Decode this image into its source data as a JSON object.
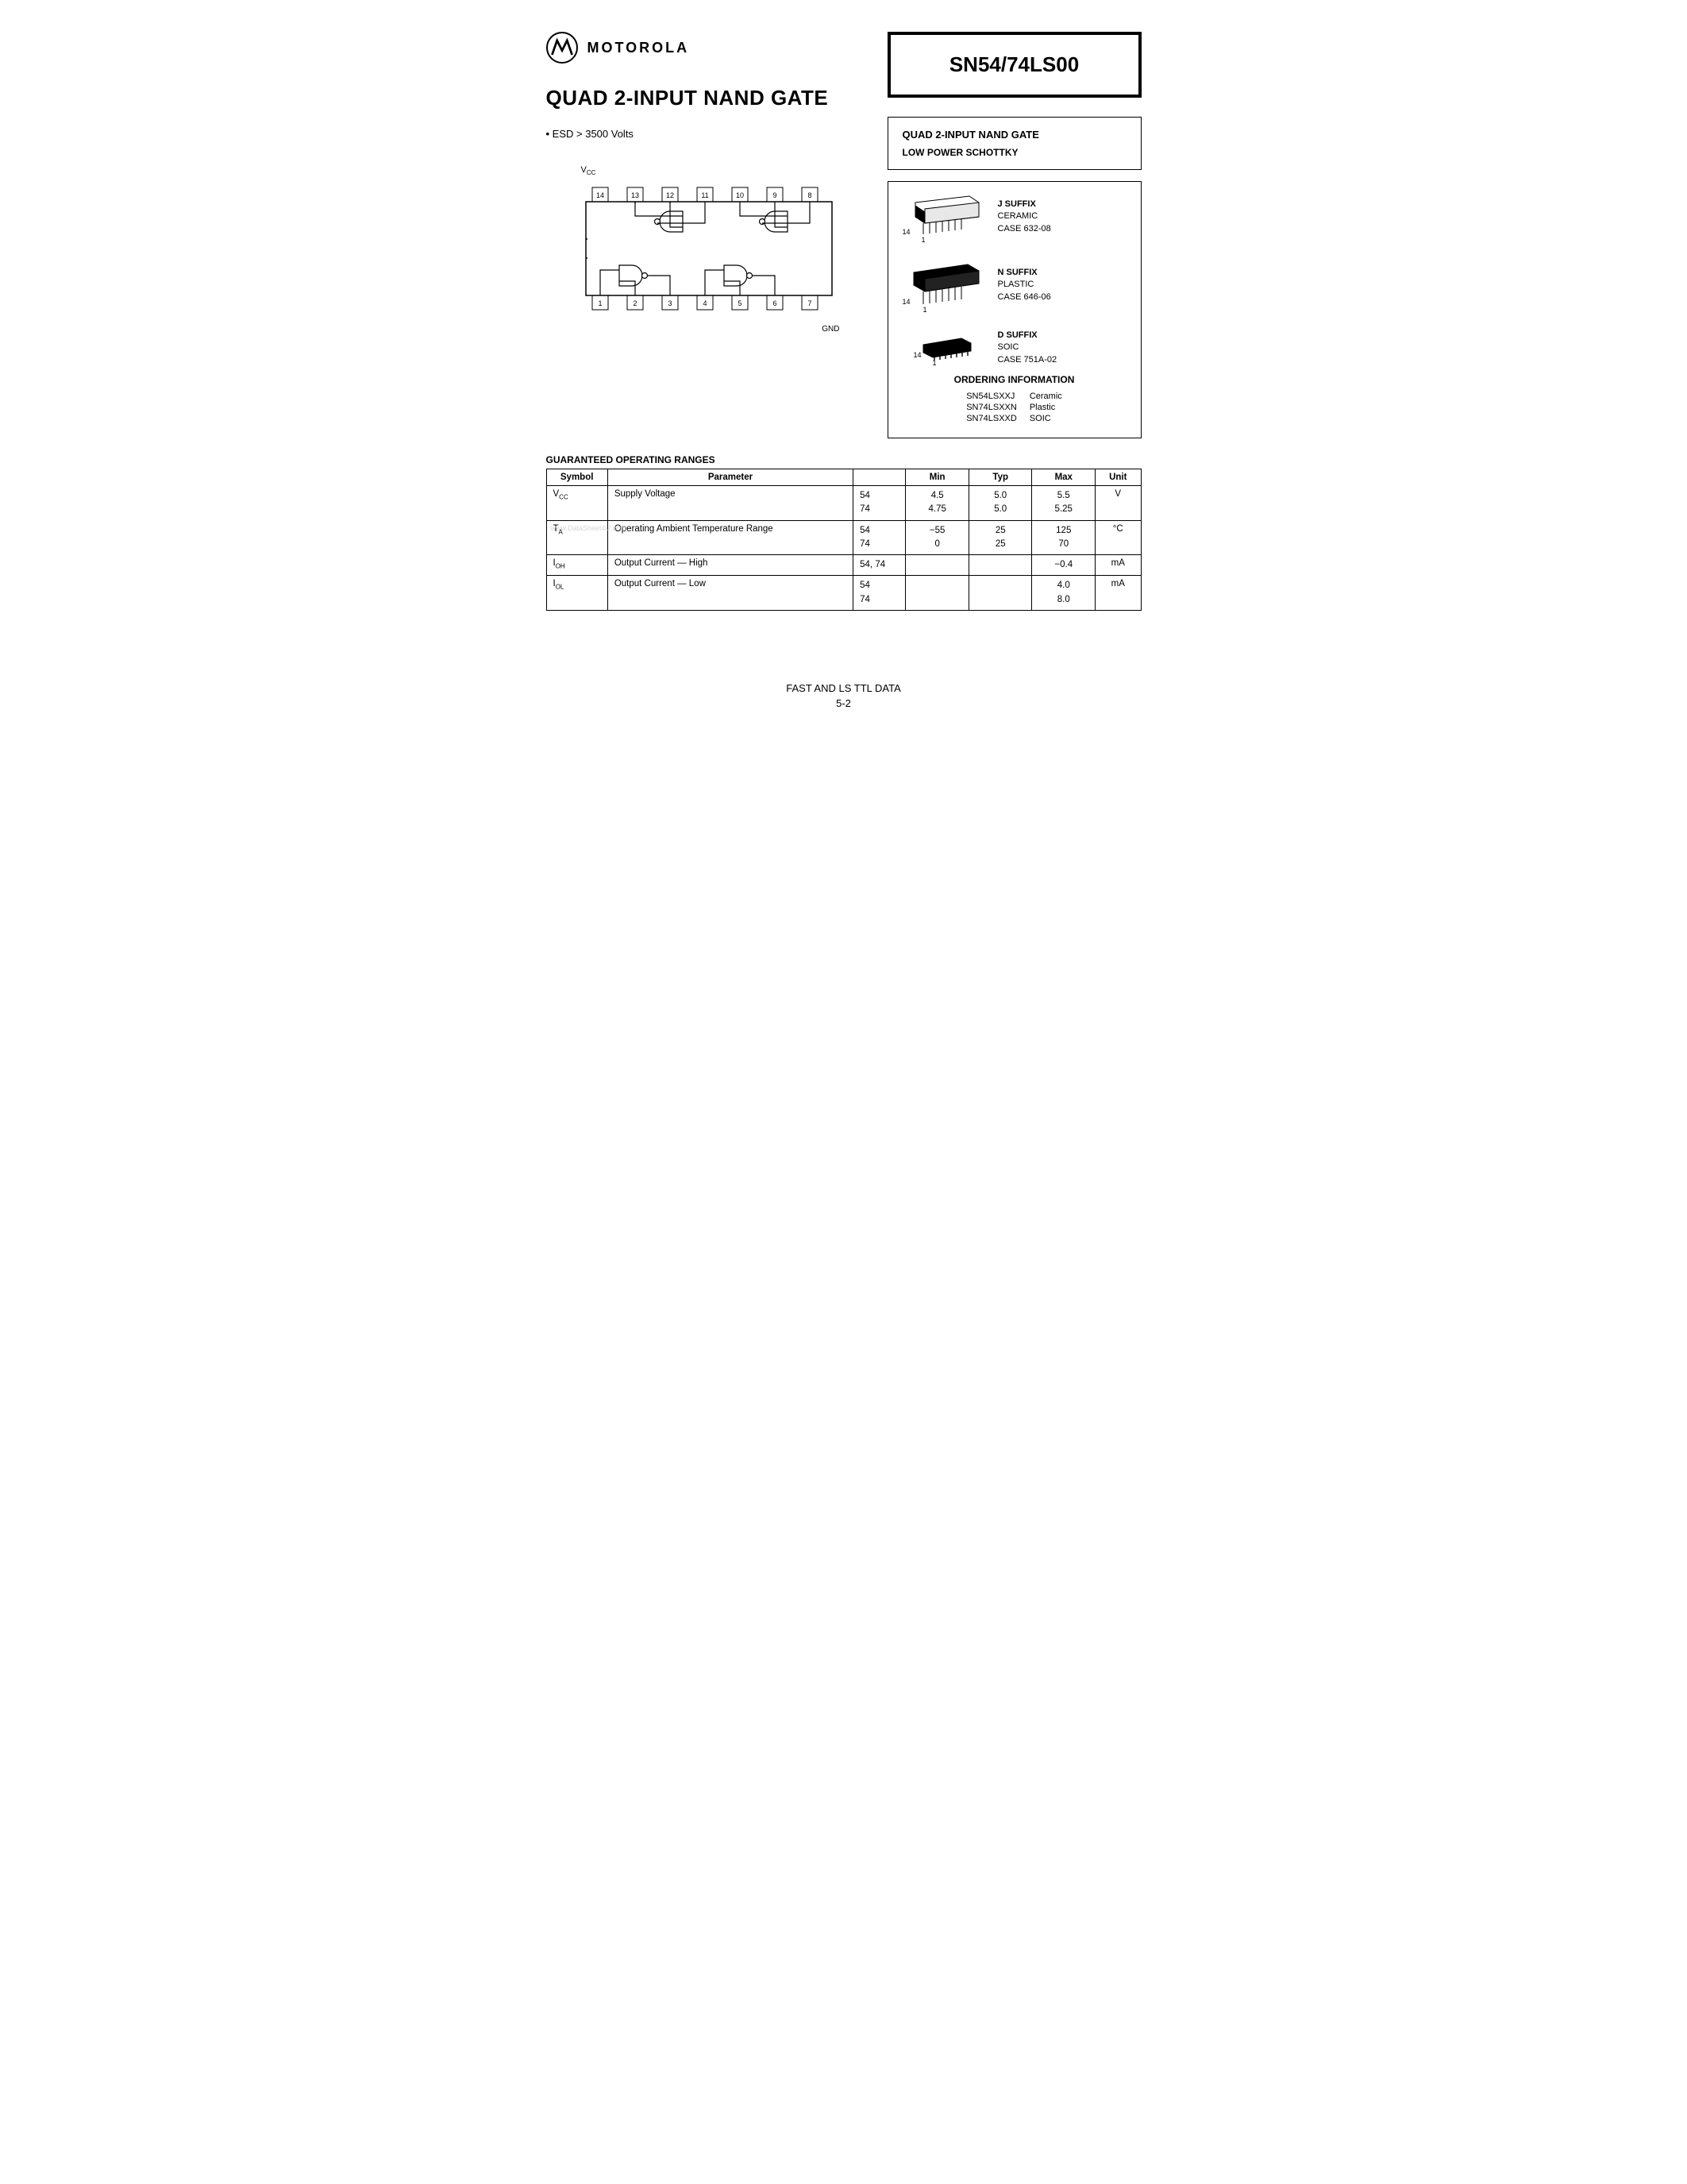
{
  "brand": "MOTOROLA",
  "main_title": "QUAD 2-INPUT NAND GATE",
  "esd_note": "ESD > 3500 Volts",
  "part_number": "SN54/74LS00",
  "side_box": {
    "title": "QUAD 2-INPUT NAND GATE",
    "subtitle": "LOW POWER SCHOTTKY"
  },
  "pin_diagram": {
    "vcc_label": "VCC",
    "gnd_label": "GND",
    "top_pins": [
      "14",
      "13",
      "12",
      "11",
      "10",
      "9",
      "8"
    ],
    "bottom_pins": [
      "1",
      "2",
      "3",
      "4",
      "5",
      "6",
      "7"
    ]
  },
  "packages": [
    {
      "suffix": "J SUFFIX",
      "type": "CERAMIC",
      "case": "CASE 632-08",
      "pin14": "14",
      "pin1": "1"
    },
    {
      "suffix": "N SUFFIX",
      "type": "PLASTIC",
      "case": "CASE 646-06",
      "pin14": "14",
      "pin1": "1"
    },
    {
      "suffix": "D SUFFIX",
      "type": "SOIC",
      "case": "CASE 751A-02",
      "pin14": "14",
      "pin1": "1"
    }
  ],
  "ordering": {
    "title": "ORDERING INFORMATION",
    "rows": [
      {
        "pn": "SN54LSXXJ",
        "desc": "Ceramic"
      },
      {
        "pn": "SN74LSXXN",
        "desc": "Plastic"
      },
      {
        "pn": "SN74LSXXD",
        "desc": "SOIC"
      }
    ]
  },
  "table": {
    "title": "GUARANTEED OPERATING RANGES",
    "headers": [
      "Symbol",
      "Parameter",
      "",
      "Min",
      "Typ",
      "Max",
      "Unit"
    ],
    "rows": [
      {
        "symbol_html": "V<sub class='sub'>CC</sub>",
        "param": "Supply Voltage",
        "cond": "54\n74",
        "min": "4.5\n4.75",
        "typ": "5.0\n5.0",
        "max": "5.5\n5.25",
        "unit": "V"
      },
      {
        "symbol_html": "T<sub class='sub'>A</sub>",
        "param": "Operating Ambient Temperature Range",
        "cond": "54\n74",
        "min": "−55\n0",
        "typ": "25\n25",
        "max": "125\n70",
        "unit": "°C"
      },
      {
        "symbol_html": "I<sub class='sub'>OH</sub>",
        "param": "Output Current — High",
        "cond": "54, 74",
        "min": "",
        "typ": "",
        "max": "−0.4",
        "unit": "mA"
      },
      {
        "symbol_html": "I<sub class='sub'>OL</sub>",
        "param": "Output Current — Low",
        "cond": "54\n74",
        "min": "",
        "typ": "",
        "max": "4.0\n8.0",
        "unit": "mA"
      }
    ]
  },
  "footer": {
    "line1": "FAST AND LS TTL DATA",
    "page": "5-2"
  },
  "watermark": "www.DataSheet4U.com"
}
